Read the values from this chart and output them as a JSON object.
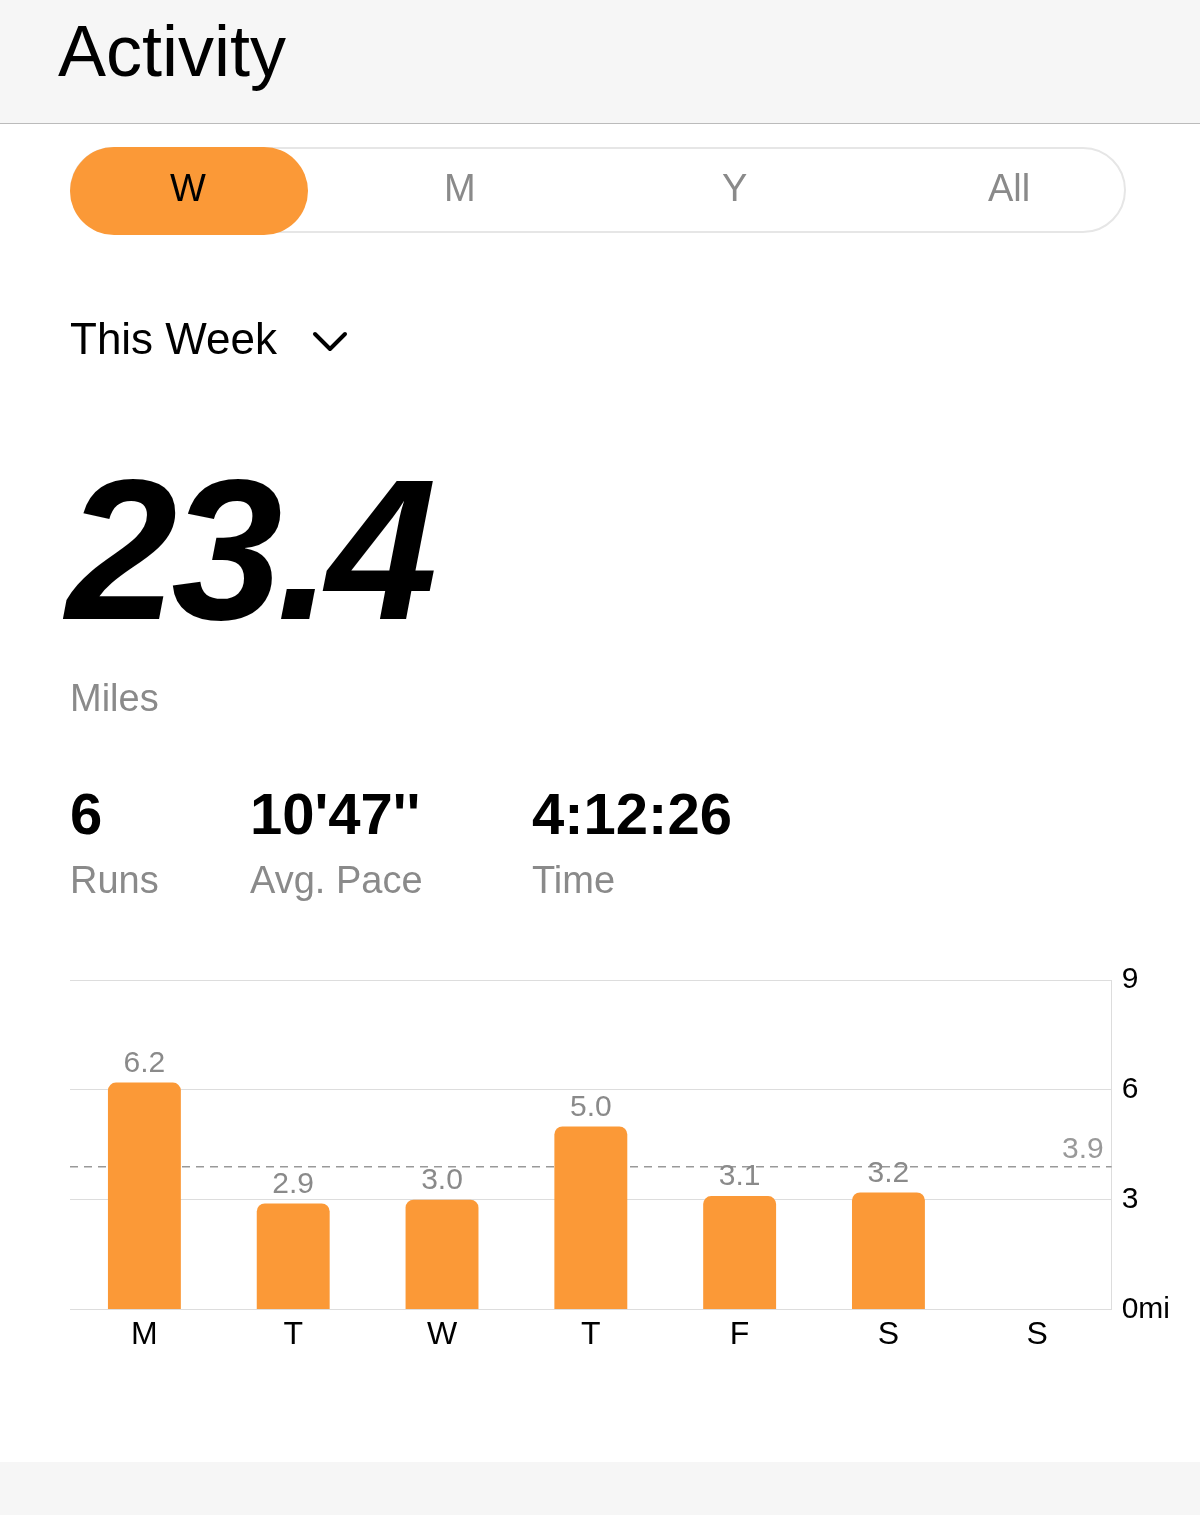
{
  "chart_data": {
    "type": "bar",
    "title": "Activity",
    "annotations": [
      "W",
      "M",
      "Y",
      "All",
      "This Week",
      "23.4",
      "Miles",
      "6",
      "Runs",
      "10'47''",
      "Avg. Pace",
      "4:12:26",
      "Time"
    ],
    "categories": [
      "M",
      "T",
      "W",
      "T",
      "F",
      "S",
      "S"
    ],
    "values": [
      6.2,
      2.9,
      3.0,
      5.0,
      3.1,
      3.2,
      null
    ],
    "value_labels": [
      "6.2",
      "2.9",
      "3.0",
      "5.0",
      "3.1",
      "3.2",
      null
    ],
    "color": "#fb9937",
    "ylim": [
      0,
      9
    ],
    "yticks": [
      {
        "value": 0,
        "label": "0mi"
      },
      3,
      6,
      9
    ],
    "grid": "y",
    "ref_lines": [
      {
        "axis": "y",
        "value": 3.9,
        "label": "3.9",
        "color": "#999999",
        "line_style": "dashed"
      }
    ]
  }
}
